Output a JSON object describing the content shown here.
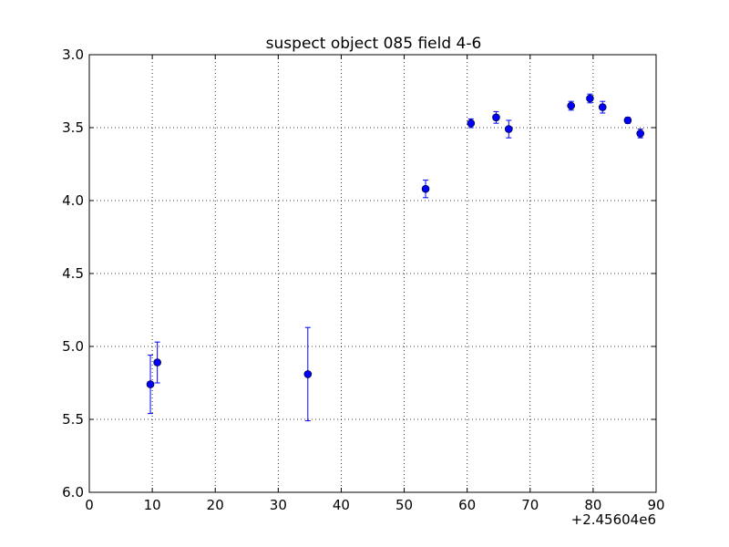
{
  "chart_data": {
    "type": "scatter",
    "title": "suspect object 085 field 4-6",
    "xlabel": "",
    "ylabel": "",
    "x_offset_label": "+2.45604e6",
    "xlim": [
      0,
      90
    ],
    "ylim": [
      6.0,
      3.0
    ],
    "y_inverted": true,
    "grid": true,
    "x_ticks": [
      0,
      10,
      20,
      30,
      40,
      50,
      60,
      70,
      80,
      90
    ],
    "x_tick_labels": [
      "0",
      "10",
      "20",
      "30",
      "40",
      "50",
      "60",
      "70",
      "80",
      "90"
    ],
    "y_ticks": [
      3.0,
      3.5,
      4.0,
      4.5,
      5.0,
      5.5,
      6.0
    ],
    "y_tick_labels": [
      "3.0",
      "3.5",
      "4.0",
      "4.5",
      "5.0",
      "5.5",
      "6.0"
    ],
    "marker_color": "#0000ff",
    "series": [
      {
        "points": [
          {
            "x": 9.7,
            "y": 5.26,
            "err": 0.2
          },
          {
            "x": 10.8,
            "y": 5.11,
            "err": 0.14
          },
          {
            "x": 34.7,
            "y": 5.19,
            "err": 0.32
          },
          {
            "x": 53.4,
            "y": 3.92,
            "err": 0.06
          },
          {
            "x": 60.6,
            "y": 3.47,
            "err": 0.03
          },
          {
            "x": 64.6,
            "y": 3.43,
            "err": 0.04
          },
          {
            "x": 66.6,
            "y": 3.51,
            "err": 0.06
          },
          {
            "x": 76.5,
            "y": 3.35,
            "err": 0.03
          },
          {
            "x": 79.5,
            "y": 3.3,
            "err": 0.03
          },
          {
            "x": 81.5,
            "y": 3.36,
            "err": 0.04
          },
          {
            "x": 85.5,
            "y": 3.45,
            "err": 0.02
          },
          {
            "x": 87.5,
            "y": 3.54,
            "err": 0.03
          }
        ]
      }
    ]
  }
}
